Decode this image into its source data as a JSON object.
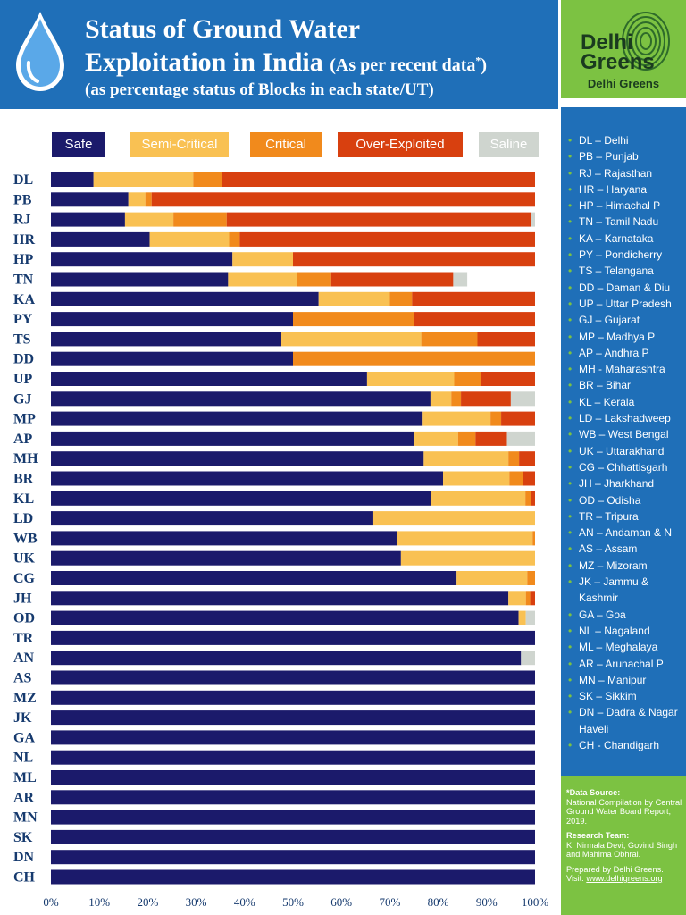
{
  "header": {
    "title_line1": "Status of Ground Water",
    "title_line2": "Exploitation in India",
    "title_note": "(As per recent data",
    "title_note_mark": "*",
    "title_note_end": ")",
    "subtitle": "(as percentage status of Blocks in each state/UT)",
    "colors": {
      "background": "#1f6fb8",
      "drop": "#5aa8e8"
    },
    "icon": "water-drop-icon"
  },
  "logo": {
    "word1": "Delhi",
    "word2": "Greens",
    "name": "Delhi Greens",
    "icon": "fingerprint-icon",
    "color": "#7cc242"
  },
  "sidebar": {
    "items": [
      "DL – Delhi",
      "PB – Punjab",
      "RJ – Rajasthan",
      "HR – Haryana",
      "HP – Himachal P",
      "TN – Tamil Nadu",
      "KA – Karnataka",
      "PY – Pondicherry",
      "TS – Telangana",
      "DD – Daman & Diu",
      "UP – Uttar Pradesh",
      "GJ – Gujarat",
      "MP – Madhya P",
      "AP – Andhra P",
      "MH  - Maharashtra",
      "BR – Bihar",
      "KL – Kerala",
      "LD – Lakshadweep",
      "WB – West Bengal",
      "UK – Uttarakhand",
      "CG – Chhattisgarh",
      "JH – Jharkhand",
      "OD – Odisha",
      "TR – Tripura",
      "AN –  Andaman & N",
      "AS – Assam",
      "MZ – Mizoram",
      "JK – Jammu & Kashmir",
      "GA – Goa",
      "NL – Nagaland",
      "ML – Meghalaya",
      "AR – Arunachal  P",
      "MN – Manipur",
      "SK – Sikkim",
      "DN – Dadra & Nagar Haveli",
      "CH - Chandigarh"
    ]
  },
  "footer": {
    "source_heading": "*Data Source:",
    "source_text": "National Compilation by Central Ground Water Board Report, 2019.",
    "team_heading": "Research Team:",
    "team_text": "K. Nirmala Devi, Govind Singh and Mahima Obhrai.",
    "prepared": "Prepared by Delhi Greens.",
    "visit_label": "Visit:",
    "visit_url": "www.delhigreens.org"
  },
  "chart_data": {
    "type": "bar",
    "orientation": "horizontal",
    "stacked": true,
    "title": "Status of Ground Water Exploitation in India",
    "subtitle": "(as percentage status of Blocks in each state/UT)",
    "xlim": [
      0,
      100
    ],
    "x_ticks": [
      "0%",
      "10%",
      "20%",
      "30%",
      "40%",
      "50%",
      "60%",
      "70%",
      "80%",
      "90%",
      "100%"
    ],
    "grid": false,
    "legend_position": "top",
    "categories": [
      "DL",
      "PB",
      "RJ",
      "HR",
      "HP",
      "TN",
      "KA",
      "PY",
      "TS",
      "DD",
      "UP",
      "GJ",
      "MP",
      "AP",
      "MH",
      "BR",
      "KL",
      "LD",
      "WB",
      "UK",
      "CG",
      "JH",
      "OD",
      "TR",
      "AN",
      "AS",
      "MZ",
      "JK",
      "GA",
      "NL",
      "ML",
      "AR",
      "MN",
      "SK",
      "DN",
      "CH"
    ],
    "series": [
      {
        "name": "Safe",
        "color": "#1b1a6b",
        "values": [
          8.8,
          16,
          15.3,
          20.4,
          37.5,
          36.6,
          55.3,
          50,
          47.6,
          50,
          65.3,
          78.4,
          76.8,
          75.1,
          77,
          81,
          78.5,
          66.6,
          71.5,
          72.3,
          83.8,
          94.5,
          96.6,
          100,
          97.1,
          100,
          100,
          100,
          100,
          100,
          100,
          100,
          100,
          100,
          100,
          100
        ]
      },
      {
        "name": "Semi-Critical",
        "color": "#f9c153",
        "values": [
          20.6,
          3.5,
          10,
          16.4,
          12.5,
          14.2,
          14.7,
          0,
          28.9,
          0,
          18,
          4.3,
          14,
          9,
          17.5,
          13.7,
          19.5,
          33.4,
          28,
          27.7,
          14.6,
          3.6,
          1.5,
          0,
          0,
          0,
          0,
          0,
          0,
          0,
          0,
          0,
          0,
          0,
          0,
          0
        ]
      },
      {
        "name": "Critical",
        "color": "#f18a1c",
        "values": [
          5.9,
          1.3,
          11,
          2.2,
          0,
          7.1,
          4.6,
          25,
          11.6,
          50,
          5.6,
          2,
          2.2,
          3.6,
          2.2,
          2.9,
          1.2,
          0,
          0.5,
          0,
          1.6,
          0.9,
          0,
          0,
          0,
          0,
          0,
          0,
          0,
          0,
          0,
          0,
          0,
          0,
          0,
          0
        ]
      },
      {
        "name": "Over-Exploited",
        "color": "#d8400f",
        "values": [
          64.7,
          79.2,
          62.9,
          61,
          50,
          25.2,
          25.4,
          25,
          11.9,
          0,
          11.1,
          10.3,
          7,
          6.5,
          3.3,
          2.4,
          0.8,
          0,
          0,
          0,
          0,
          1,
          0,
          0,
          0,
          0,
          0,
          0,
          0,
          0,
          0,
          0,
          0,
          0,
          0,
          0
        ]
      },
      {
        "name": "Saline",
        "color": "#cfd5cf",
        "values": [
          0,
          0,
          0.8,
          0,
          0,
          2.9,
          0,
          0,
          0,
          0,
          0,
          5,
          0,
          5.8,
          0,
          0,
          0,
          0,
          0,
          0,
          0,
          0,
          1.9,
          0,
          2.9,
          0,
          0,
          0,
          0,
          0,
          0,
          0,
          0,
          0,
          0,
          0
        ]
      }
    ]
  }
}
